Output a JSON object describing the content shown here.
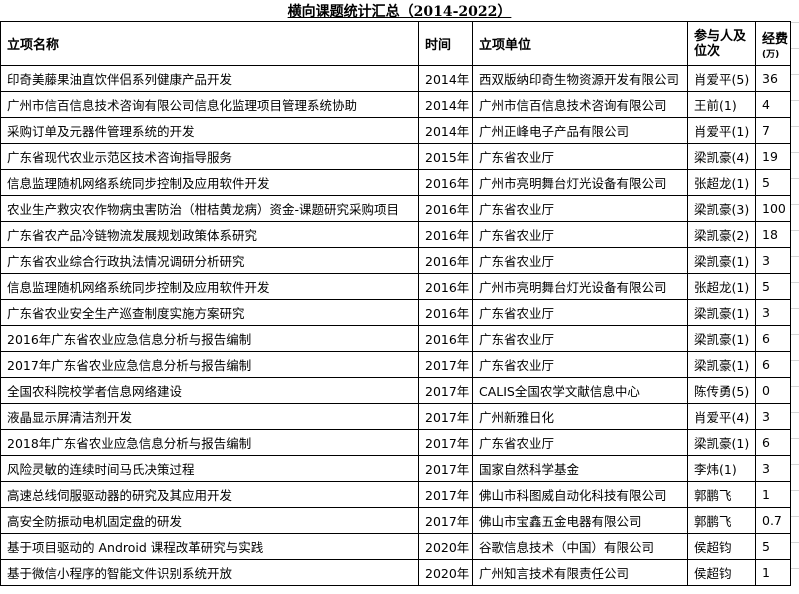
{
  "title": "横向课题统计汇总（2014-2022）",
  "headers": {
    "name": "立项名称",
    "time": "时间",
    "unit": "立项单位",
    "person": "参与人及位次",
    "fee": "经费",
    "fee_unit": "(万)"
  },
  "rows": [
    {
      "name": "印奇美藤果油直饮伴侣系列健康产品开发",
      "time": "2014年",
      "unit": "西双版纳印奇生物资源开发有限公司",
      "person": "肖爱平(5)",
      "fee": "36"
    },
    {
      "name": "广州市信百信息技术咨询有限公司信息化监理项目管理系统协助",
      "time": "2014年",
      "unit": "广州市信百信息技术咨询有限公司",
      "person": "王前(1)",
      "fee": "4"
    },
    {
      "name": "采购订单及元器件管理系统的开发",
      "time": "2014年",
      "unit": "广州正峰电子产品有限公司",
      "person": "肖爱平(1)",
      "fee": "7"
    },
    {
      "name": "广东省现代农业示范区技术咨询指导服务",
      "time": "2015年",
      "unit": "广东省农业厅",
      "person": "梁凯豪(4)",
      "fee": "19"
    },
    {
      "name": "信息监理随机网络系统同步控制及应用软件开发",
      "time": "2016年",
      "unit": "广州市亮明舞台灯光设备有限公司",
      "person": "张超龙(1)",
      "fee": "5"
    },
    {
      "name": "农业生产救灾农作物病虫害防治（柑桔黄龙病）资金-课题研究采购项目",
      "time": "2016年",
      "unit": "广东省农业厅",
      "person": "梁凯豪(3)",
      "fee": "100"
    },
    {
      "name": "广东省农产品冷链物流发展规划政策体系研究",
      "time": "2016年",
      "unit": "广东省农业厅",
      "person": "梁凯豪(2)",
      "fee": "18"
    },
    {
      "name": "广东省农业综合行政执法情况调研分析研究",
      "time": "2016年",
      "unit": "广东省农业厅",
      "person": "梁凯豪(1)",
      "fee": "3"
    },
    {
      "name": "信息监理随机网络系统同步控制及应用软件开发",
      "time": "2016年",
      "unit": "广州市亮明舞台灯光设备有限公司",
      "person": "张超龙(1)",
      "fee": "5"
    },
    {
      "name": "广东省农业安全生产巡查制度实施方案研究",
      "time": "2016年",
      "unit": "广东省农业厅",
      "person": "梁凯豪(1)",
      "fee": "3"
    },
    {
      "name": "2016年广东省农业应急信息分析与报告编制",
      "time": "2016年",
      "unit": "广东省农业厅",
      "person": "梁凯豪(1)",
      "fee": "6"
    },
    {
      "name": "2017年广东省农业应急信息分析与报告编制",
      "time": "2017年",
      "unit": "广东省农业厅",
      "person": "梁凯豪(1)",
      "fee": "6"
    },
    {
      "name": "全国农科院校学者信息网络建设",
      "time": "2017年",
      "unit": "CALIS全国农学文献信息中心",
      "person": "陈传勇(5)",
      "fee": "0"
    },
    {
      "name": "液晶显示屏清洁剂开发",
      "time": "2017年",
      "unit": "广州新雅日化",
      "person": "肖爱平(4)",
      "fee": "3"
    },
    {
      "name": "2018年广东省农业应急信息分析与报告编制",
      "time": "2017年",
      "unit": "广东省农业厅",
      "person": "梁凯豪(1)",
      "fee": "6"
    },
    {
      "name": "风险灵敏的连续时间马氏决策过程",
      "time": "2017年",
      "unit": "国家自然科学基金",
      "person": "李炜(1)",
      "fee": "3"
    },
    {
      "name": "高速总线伺服驱动器的研究及其应用开发",
      "time": "2017年",
      "unit": "佛山市科图威自动化科技有限公司",
      "person": "郭鹏飞",
      "fee": "1"
    },
    {
      "name": "高安全防振动电机固定盘的研发",
      "time": "2017年",
      "unit": "佛山市宝鑫五金电器有限公司",
      "person": "郭鹏飞",
      "fee": "0.7"
    },
    {
      "name": "基于项目驱动的 Android 课程改革研究与实践",
      "time": "2020年",
      "unit": "谷歌信息技术（中国）有限公司",
      "person": "侯超钧",
      "fee": "5"
    },
    {
      "name": "基于微信小程序的智能文件识别系统开放",
      "time": "2020年",
      "unit": "广州知言技术有限责任公司",
      "person": "侯超钧",
      "fee": "1"
    }
  ]
}
